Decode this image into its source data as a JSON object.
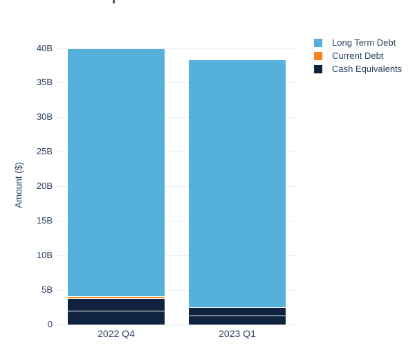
{
  "chart_data": {
    "type": "bar",
    "stacked": true,
    "title": "",
    "ylabel": "Amount ($)",
    "xlabel": "",
    "ylim": [
      0,
      40
    ],
    "grid": true,
    "legend_position": "top-right",
    "categories": [
      "2022 Q4",
      "2023 Q1"
    ],
    "yticks": [
      {
        "value": 0,
        "label": "0"
      },
      {
        "value": 5,
        "label": "5B"
      },
      {
        "value": 10,
        "label": "10B"
      },
      {
        "value": 15,
        "label": "15B"
      },
      {
        "value": 20,
        "label": "20B"
      },
      {
        "value": 25,
        "label": "25B"
      },
      {
        "value": 30,
        "label": "30B"
      },
      {
        "value": 35,
        "label": "35B"
      },
      {
        "value": 40,
        "label": "40B"
      }
    ],
    "series": [
      {
        "name": "Long Term Debt",
        "color": "#55b1db",
        "values": [
          35.8,
          35.8
        ],
        "segments_by_category": [
          [
            35.8
          ],
          [
            35.8
          ]
        ]
      },
      {
        "name": "Current Debt",
        "color": "#f5821f",
        "values": [
          0.3,
          0
        ],
        "segments_by_category": [
          [
            0.3
          ],
          [
            0
          ]
        ]
      },
      {
        "name": "Cash Equivalents",
        "color": "#0f2340",
        "values": [
          3.7,
          2.4
        ],
        "segments_by_category": [
          [
            1.9,
            1.8
          ],
          [
            1.2,
            1.2
          ]
        ]
      }
    ],
    "stack_order_bottom_to_top": [
      "Cash Equivalents",
      "Current Debt",
      "Long Term Debt"
    ],
    "stack_totals": [
      39.8,
      38.2
    ],
    "unit_suffix": "B"
  },
  "colors": {
    "tick_text": "#2a3f5f",
    "gridline": "#e9edf5",
    "segment_separator": "#ffffff",
    "background": "#ffffff"
  }
}
